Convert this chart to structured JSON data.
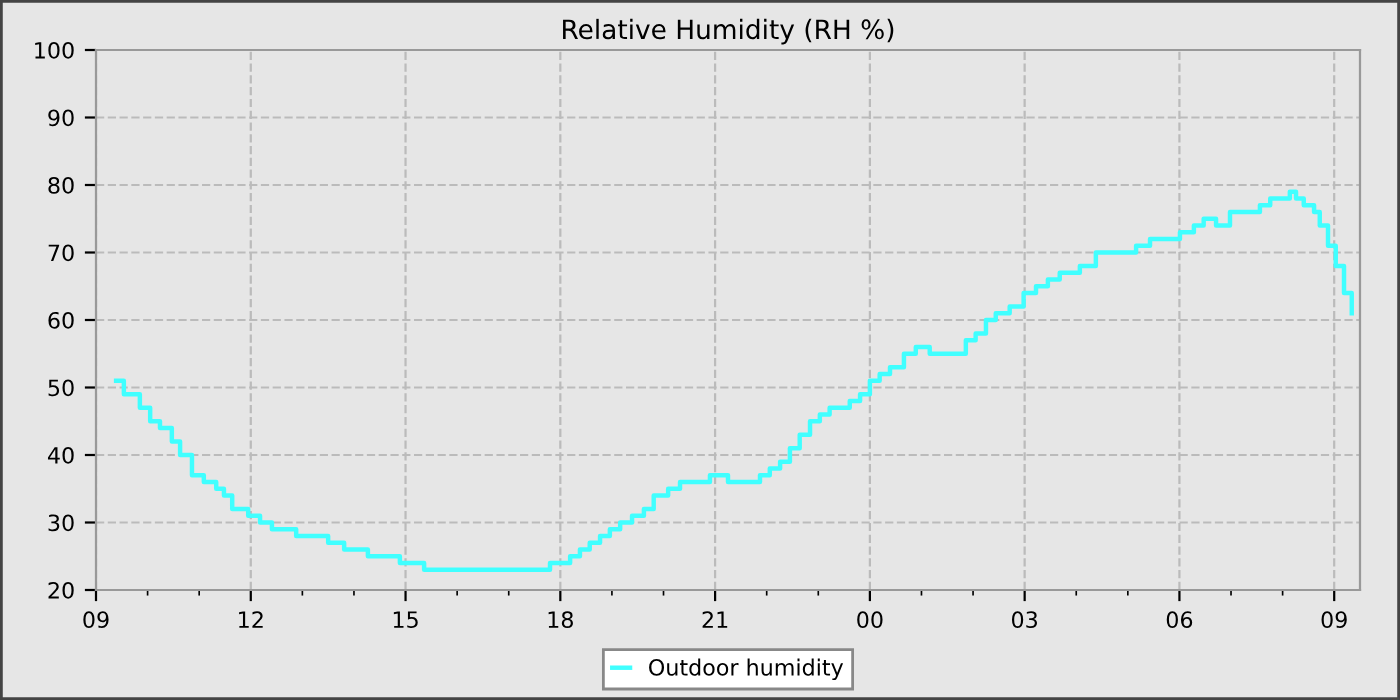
{
  "chart_data": {
    "type": "step",
    "title": "Relative Humidity (RH %)",
    "xlim": [
      9,
      33.5
    ],
    "xticks": [
      {
        "value": 9,
        "label": "09"
      },
      {
        "value": 12,
        "label": "12"
      },
      {
        "value": 15,
        "label": "15"
      },
      {
        "value": 18,
        "label": "18"
      },
      {
        "value": 21,
        "label": "21"
      },
      {
        "value": 24,
        "label": "00"
      },
      {
        "value": 27,
        "label": "03"
      },
      {
        "value": 30,
        "label": "06"
      },
      {
        "value": 33,
        "label": "09"
      }
    ],
    "ylim": [
      20,
      100
    ],
    "yticks": [
      20,
      30,
      40,
      50,
      60,
      70,
      80,
      90,
      100
    ],
    "grid": true,
    "legend": "bottom",
    "series": [
      {
        "name": "Outdoor humidity",
        "color": "#40ffff",
        "x": [
          9.39,
          9.54,
          9.85,
          10.05,
          10.24,
          10.47,
          10.63,
          10.86,
          11.09,
          11.33,
          11.48,
          11.64,
          11.95,
          12.18,
          12.41,
          12.64,
          12.88,
          13.34,
          13.5,
          13.81,
          14.12,
          14.27,
          14.7,
          14.89,
          15.28,
          15.36,
          16.44,
          17.53,
          17.8,
          17.99,
          18.19,
          18.38,
          18.57,
          18.77,
          18.96,
          19.16,
          19.39,
          19.62,
          19.81,
          20.09,
          20.32,
          20.71,
          20.9,
          21.17,
          21.25,
          21.67,
          21.87,
          22.06,
          22.26,
          22.45,
          22.64,
          22.84,
          23.03,
          23.22,
          23.61,
          23.81,
          24.0,
          24.19,
          24.39,
          24.66,
          24.89,
          25.16,
          25.67,
          25.86,
          26.05,
          26.25,
          26.44,
          26.71,
          26.98,
          27.22,
          27.45,
          27.68,
          28.07,
          28.38,
          28.65,
          28.92,
          29.16,
          29.43,
          29.81,
          30.01,
          30.28,
          30.47,
          30.71,
          30.98,
          31.25,
          31.56,
          31.76,
          31.95,
          32.14,
          32.26,
          32.41,
          32.61,
          32.72,
          32.88,
          33.03,
          33.19,
          33.34
        ],
        "values": [
          51,
          49,
          47,
          45,
          44,
          42,
          40,
          37,
          36,
          35,
          34,
          32,
          31,
          30,
          29,
          29,
          28,
          28,
          27,
          26,
          26,
          25,
          25,
          24,
          24,
          23,
          23,
          23,
          24,
          24,
          25,
          26,
          27,
          28,
          29,
          30,
          31,
          32,
          34,
          35,
          36,
          36,
          37,
          37,
          36,
          36,
          37,
          38,
          39,
          41,
          43,
          45,
          46,
          47,
          48,
          49,
          51,
          52,
          53,
          55,
          56,
          55,
          55,
          57,
          58,
          60,
          61,
          62,
          64,
          65,
          66,
          67,
          68,
          70,
          70,
          70,
          71,
          72,
          72,
          73,
          74,
          75,
          74,
          76,
          76,
          77,
          78,
          78,
          79,
          78,
          77,
          76,
          74,
          71,
          68,
          64,
          61
        ]
      }
    ]
  }
}
